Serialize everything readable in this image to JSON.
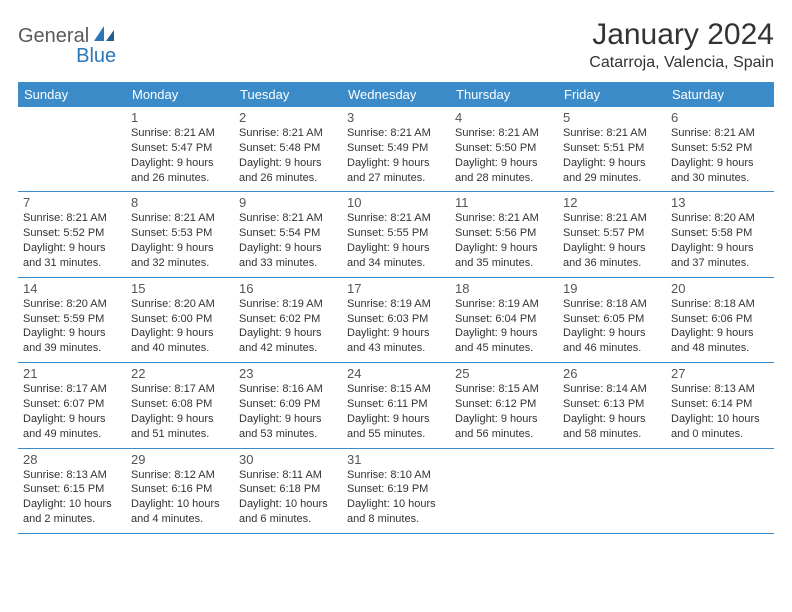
{
  "brand": {
    "part1": "General",
    "part2": "Blue"
  },
  "title": "January 2024",
  "location": "Catarroja, Valencia, Spain",
  "colors": {
    "header_bg": "#3b8bc9",
    "header_text": "#ffffff",
    "rule": "#3b8bc9",
    "text": "#333333",
    "brand_gray": "#5a5a5a",
    "brand_blue": "#2a77bb",
    "page_bg": "#ffffff"
  },
  "typography": {
    "month_title_pt": 30,
    "location_pt": 16,
    "dow_pt": 13,
    "day_num_pt": 13,
    "body_pt": 11
  },
  "days_of_week": [
    "Sunday",
    "Monday",
    "Tuesday",
    "Wednesday",
    "Thursday",
    "Friday",
    "Saturday"
  ],
  "weeks": [
    [
      {
        "n": "",
        "lines": []
      },
      {
        "n": "1",
        "lines": [
          "Sunrise: 8:21 AM",
          "Sunset: 5:47 PM",
          "Daylight: 9 hours",
          "and 26 minutes."
        ]
      },
      {
        "n": "2",
        "lines": [
          "Sunrise: 8:21 AM",
          "Sunset: 5:48 PM",
          "Daylight: 9 hours",
          "and 26 minutes."
        ]
      },
      {
        "n": "3",
        "lines": [
          "Sunrise: 8:21 AM",
          "Sunset: 5:49 PM",
          "Daylight: 9 hours",
          "and 27 minutes."
        ]
      },
      {
        "n": "4",
        "lines": [
          "Sunrise: 8:21 AM",
          "Sunset: 5:50 PM",
          "Daylight: 9 hours",
          "and 28 minutes."
        ]
      },
      {
        "n": "5",
        "lines": [
          "Sunrise: 8:21 AM",
          "Sunset: 5:51 PM",
          "Daylight: 9 hours",
          "and 29 minutes."
        ]
      },
      {
        "n": "6",
        "lines": [
          "Sunrise: 8:21 AM",
          "Sunset: 5:52 PM",
          "Daylight: 9 hours",
          "and 30 minutes."
        ]
      }
    ],
    [
      {
        "n": "7",
        "lines": [
          "Sunrise: 8:21 AM",
          "Sunset: 5:52 PM",
          "Daylight: 9 hours",
          "and 31 minutes."
        ]
      },
      {
        "n": "8",
        "lines": [
          "Sunrise: 8:21 AM",
          "Sunset: 5:53 PM",
          "Daylight: 9 hours",
          "and 32 minutes."
        ]
      },
      {
        "n": "9",
        "lines": [
          "Sunrise: 8:21 AM",
          "Sunset: 5:54 PM",
          "Daylight: 9 hours",
          "and 33 minutes."
        ]
      },
      {
        "n": "10",
        "lines": [
          "Sunrise: 8:21 AM",
          "Sunset: 5:55 PM",
          "Daylight: 9 hours",
          "and 34 minutes."
        ]
      },
      {
        "n": "11",
        "lines": [
          "Sunrise: 8:21 AM",
          "Sunset: 5:56 PM",
          "Daylight: 9 hours",
          "and 35 minutes."
        ]
      },
      {
        "n": "12",
        "lines": [
          "Sunrise: 8:21 AM",
          "Sunset: 5:57 PM",
          "Daylight: 9 hours",
          "and 36 minutes."
        ]
      },
      {
        "n": "13",
        "lines": [
          "Sunrise: 8:20 AM",
          "Sunset: 5:58 PM",
          "Daylight: 9 hours",
          "and 37 minutes."
        ]
      }
    ],
    [
      {
        "n": "14",
        "lines": [
          "Sunrise: 8:20 AM",
          "Sunset: 5:59 PM",
          "Daylight: 9 hours",
          "and 39 minutes."
        ]
      },
      {
        "n": "15",
        "lines": [
          "Sunrise: 8:20 AM",
          "Sunset: 6:00 PM",
          "Daylight: 9 hours",
          "and 40 minutes."
        ]
      },
      {
        "n": "16",
        "lines": [
          "Sunrise: 8:19 AM",
          "Sunset: 6:02 PM",
          "Daylight: 9 hours",
          "and 42 minutes."
        ]
      },
      {
        "n": "17",
        "lines": [
          "Sunrise: 8:19 AM",
          "Sunset: 6:03 PM",
          "Daylight: 9 hours",
          "and 43 minutes."
        ]
      },
      {
        "n": "18",
        "lines": [
          "Sunrise: 8:19 AM",
          "Sunset: 6:04 PM",
          "Daylight: 9 hours",
          "and 45 minutes."
        ]
      },
      {
        "n": "19",
        "lines": [
          "Sunrise: 8:18 AM",
          "Sunset: 6:05 PM",
          "Daylight: 9 hours",
          "and 46 minutes."
        ]
      },
      {
        "n": "20",
        "lines": [
          "Sunrise: 8:18 AM",
          "Sunset: 6:06 PM",
          "Daylight: 9 hours",
          "and 48 minutes."
        ]
      }
    ],
    [
      {
        "n": "21",
        "lines": [
          "Sunrise: 8:17 AM",
          "Sunset: 6:07 PM",
          "Daylight: 9 hours",
          "and 49 minutes."
        ]
      },
      {
        "n": "22",
        "lines": [
          "Sunrise: 8:17 AM",
          "Sunset: 6:08 PM",
          "Daylight: 9 hours",
          "and 51 minutes."
        ]
      },
      {
        "n": "23",
        "lines": [
          "Sunrise: 8:16 AM",
          "Sunset: 6:09 PM",
          "Daylight: 9 hours",
          "and 53 minutes."
        ]
      },
      {
        "n": "24",
        "lines": [
          "Sunrise: 8:15 AM",
          "Sunset: 6:11 PM",
          "Daylight: 9 hours",
          "and 55 minutes."
        ]
      },
      {
        "n": "25",
        "lines": [
          "Sunrise: 8:15 AM",
          "Sunset: 6:12 PM",
          "Daylight: 9 hours",
          "and 56 minutes."
        ]
      },
      {
        "n": "26",
        "lines": [
          "Sunrise: 8:14 AM",
          "Sunset: 6:13 PM",
          "Daylight: 9 hours",
          "and 58 minutes."
        ]
      },
      {
        "n": "27",
        "lines": [
          "Sunrise: 8:13 AM",
          "Sunset: 6:14 PM",
          "Daylight: 10 hours",
          "and 0 minutes."
        ]
      }
    ],
    [
      {
        "n": "28",
        "lines": [
          "Sunrise: 8:13 AM",
          "Sunset: 6:15 PM",
          "Daylight: 10 hours",
          "and 2 minutes."
        ]
      },
      {
        "n": "29",
        "lines": [
          "Sunrise: 8:12 AM",
          "Sunset: 6:16 PM",
          "Daylight: 10 hours",
          "and 4 minutes."
        ]
      },
      {
        "n": "30",
        "lines": [
          "Sunrise: 8:11 AM",
          "Sunset: 6:18 PM",
          "Daylight: 10 hours",
          "and 6 minutes."
        ]
      },
      {
        "n": "31",
        "lines": [
          "Sunrise: 8:10 AM",
          "Sunset: 6:19 PM",
          "Daylight: 10 hours",
          "and 8 minutes."
        ]
      },
      {
        "n": "",
        "lines": []
      },
      {
        "n": "",
        "lines": []
      },
      {
        "n": "",
        "lines": []
      }
    ]
  ]
}
